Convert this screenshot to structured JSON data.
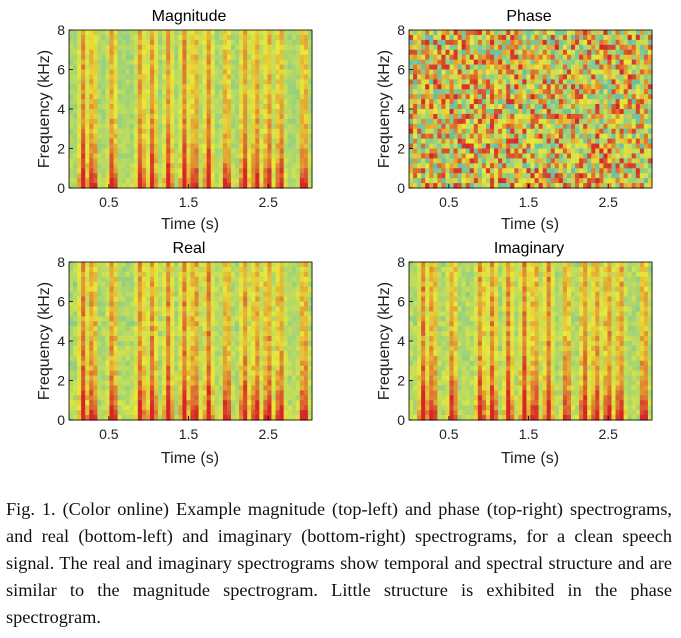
{
  "figure": {
    "panels": [
      {
        "id": "magnitude",
        "title": "Magnitude",
        "ylabel": "Frequency (kHz)",
        "xlabel": "Time (s)",
        "mode": "mag"
      },
      {
        "id": "phase",
        "title": "Phase",
        "ylabel": "Frequency (kHz)",
        "xlabel": "Time (s)",
        "mode": "phase"
      },
      {
        "id": "real",
        "title": "Real",
        "ylabel": "Frequency (kHz)",
        "xlabel": "Time (s)",
        "mode": "real"
      },
      {
        "id": "imaginary",
        "title": "Imaginary",
        "ylabel": "Frequency (kHz)",
        "xlabel": "Time (s)",
        "mode": "imag"
      }
    ],
    "x_ticks": [
      "0.5",
      "1.5",
      "2.5"
    ],
    "x_tick_values": [
      0.5,
      1.5,
      2.5
    ],
    "y_ticks": [
      "0",
      "2",
      "4",
      "6",
      "8"
    ],
    "y_tick_values": [
      0,
      2,
      4,
      6,
      8
    ],
    "x_range": [
      0,
      3.05
    ],
    "y_range": [
      0,
      8
    ],
    "colors": {
      "low": "#5fbfae",
      "mid": "#e9e93a",
      "high": "#d6262a",
      "grid": "#000000"
    }
  },
  "caption": "Fig. 1.  (Color online) Example magnitude (top-left) and phase (top-right) spectrograms, and real (bottom-left) and imaginary (bottom-right) spectrograms, for a clean speech signal. The real and imaginary spectrograms show temporal and spectral structure and are similar to the magnitude spectrogram. Little structure is exhibited in the phase spectrogram."
}
